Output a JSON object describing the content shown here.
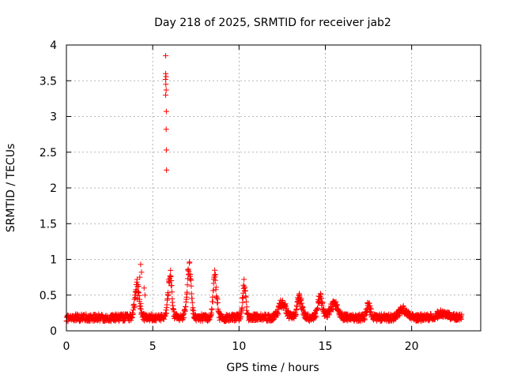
{
  "chart_data": {
    "type": "scatter",
    "title": "Day 218 of 2025, SRMTID for receiver jab2",
    "xlabel": "GPS time / hours",
    "ylabel": "SRMTID / TECUs",
    "xlim": [
      0,
      24
    ],
    "ylim": [
      0,
      4
    ],
    "x_ticks": [
      0,
      5,
      10,
      15,
      20
    ],
    "x_tick_labels": [
      "0",
      "5",
      "10",
      "15",
      "20"
    ],
    "y_ticks": [
      0,
      0.5,
      1,
      1.5,
      2,
      2.5,
      3,
      3.5,
      4
    ],
    "y_tick_labels": [
      "0",
      "0.5",
      "1",
      "1.5",
      "2",
      "2.5",
      "3",
      "3.5",
      "4"
    ],
    "grid": true,
    "marker": "+",
    "color": "#ff0000",
    "series": [
      {
        "name": "SRMTID",
        "x": [
          5.75,
          5.75,
          5.77,
          5.74,
          5.76,
          5.78,
          5.75,
          5.79,
          5.78,
          5.79,
          5.8,
          4.3,
          4.35,
          4.25,
          4.5,
          4.55,
          4.0,
          4.1
        ],
        "y": [
          3.85,
          3.6,
          3.56,
          3.52,
          3.45,
          3.37,
          3.3,
          3.07,
          2.82,
          2.53,
          2.25,
          0.93,
          0.82,
          0.75,
          0.6,
          0.5,
          0.55,
          0.45
        ],
        "x_bulk_range": [
          0,
          22.9
        ],
        "bulk_baseline": 0.17,
        "bulk_spread": 0.1,
        "bulk_bumps": [
          {
            "x": 4.1,
            "peak": 0.72,
            "width": 0.18
          },
          {
            "x": 6.0,
            "peak": 0.85,
            "width": 0.15
          },
          {
            "x": 7.1,
            "peak": 0.95,
            "width": 0.17
          },
          {
            "x": 8.6,
            "peak": 0.82,
            "width": 0.15
          },
          {
            "x": 10.3,
            "peak": 0.7,
            "width": 0.13
          },
          {
            "x": 12.5,
            "peak": 0.4,
            "width": 0.3
          },
          {
            "x": 13.5,
            "peak": 0.48,
            "width": 0.2
          },
          {
            "x": 14.7,
            "peak": 0.48,
            "width": 0.2
          },
          {
            "x": 15.5,
            "peak": 0.4,
            "width": 0.3
          },
          {
            "x": 17.5,
            "peak": 0.38,
            "width": 0.15
          },
          {
            "x": 19.5,
            "peak": 0.3,
            "width": 0.3
          },
          {
            "x": 21.8,
            "peak": 0.25,
            "width": 0.4
          }
        ]
      }
    ]
  }
}
